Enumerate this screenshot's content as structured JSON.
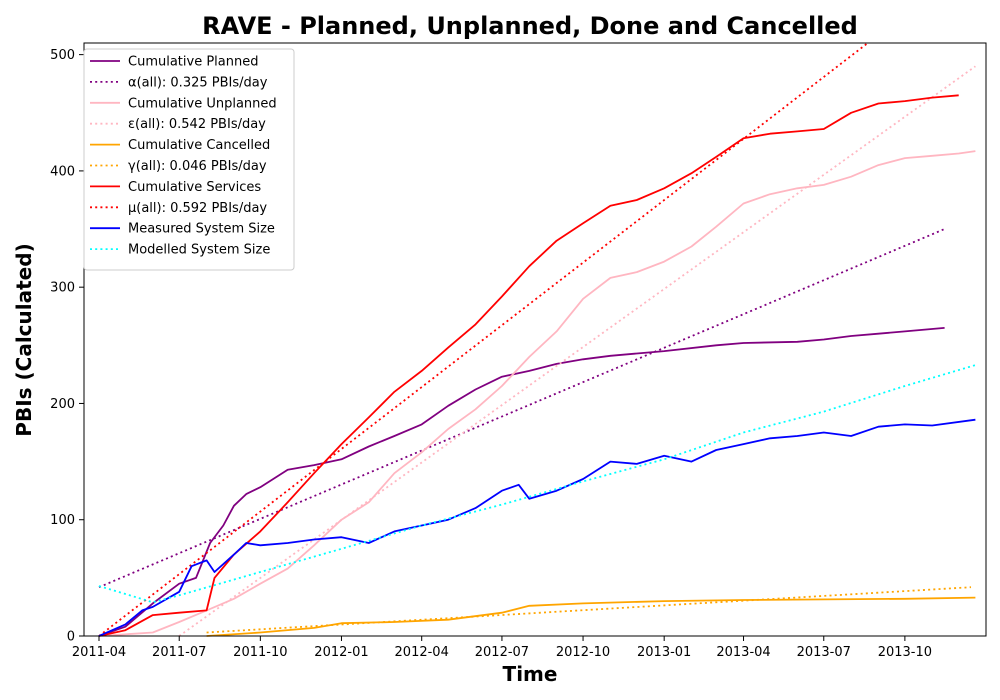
{
  "chart_data": {
    "type": "line",
    "title": "RAVE - Planned, Unplanned, Done  and Cancelled",
    "xlabel": "Time",
    "ylabel": "PBIs (Calculated)",
    "xlim": [
      "2011-03-15",
      "2014-01-01"
    ],
    "ylim": [
      0,
      510
    ],
    "xticks": [
      {
        "date": "2011-04-01",
        "label": "2011-04"
      },
      {
        "date": "2011-07-01",
        "label": "2011-07"
      },
      {
        "date": "2011-10-01",
        "label": "2011-10"
      },
      {
        "date": "2012-01-01",
        "label": "2012-01"
      },
      {
        "date": "2012-04-01",
        "label": "2012-04"
      },
      {
        "date": "2012-07-01",
        "label": "2012-07"
      },
      {
        "date": "2012-10-01",
        "label": "2012-10"
      },
      {
        "date": "2013-01-01",
        "label": "2013-01"
      },
      {
        "date": "2013-04-01",
        "label": "2013-04"
      },
      {
        "date": "2013-07-01",
        "label": "2013-07"
      },
      {
        "date": "2013-10-01",
        "label": "2013-10"
      }
    ],
    "yticks": [
      0,
      100,
      200,
      300,
      400,
      500
    ],
    "grid": false,
    "legend_position": "top-left",
    "series": [
      {
        "name": "Cumulative Planned",
        "color": "#800080",
        "style": "solid",
        "points": [
          [
            "2011-04-01",
            0
          ],
          [
            "2011-05-01",
            8
          ],
          [
            "2011-06-01",
            28
          ],
          [
            "2011-07-01",
            45
          ],
          [
            "2011-07-20",
            50
          ],
          [
            "2011-08-05",
            80
          ],
          [
            "2011-08-20",
            95
          ],
          [
            "2011-09-01",
            112
          ],
          [
            "2011-09-15",
            122
          ],
          [
            "2011-10-01",
            128
          ],
          [
            "2011-11-01",
            143
          ],
          [
            "2011-12-01",
            147
          ],
          [
            "2012-01-01",
            152
          ],
          [
            "2012-02-01",
            163
          ],
          [
            "2012-03-01",
            172
          ],
          [
            "2012-04-01",
            182
          ],
          [
            "2012-05-01",
            198
          ],
          [
            "2012-06-01",
            212
          ],
          [
            "2012-07-01",
            223
          ],
          [
            "2012-08-01",
            228
          ],
          [
            "2012-09-01",
            234
          ],
          [
            "2012-10-01",
            238
          ],
          [
            "2012-11-01",
            241
          ],
          [
            "2012-12-01",
            243
          ],
          [
            "2013-01-01",
            245
          ],
          [
            "2013-03-01",
            250
          ],
          [
            "2013-04-01",
            252
          ],
          [
            "2013-06-01",
            253
          ],
          [
            "2013-07-01",
            255
          ],
          [
            "2013-08-01",
            258
          ],
          [
            "2013-09-01",
            260
          ],
          [
            "2013-10-01",
            262
          ],
          [
            "2013-11-15",
            265
          ]
        ]
      },
      {
        "name": "α(all): 0.325 PBIs/day",
        "color": "#800080",
        "style": "dotted",
        "points": [
          [
            "2011-04-01",
            42
          ],
          [
            "2013-11-15",
            350
          ]
        ]
      },
      {
        "name": "Cumulative Unplanned",
        "color": "#FFB6C1",
        "style": "solid",
        "points": [
          [
            "2011-04-01",
            0
          ],
          [
            "2011-06-01",
            3
          ],
          [
            "2011-07-01",
            12
          ],
          [
            "2011-08-01",
            22
          ],
          [
            "2011-09-01",
            32
          ],
          [
            "2011-10-01",
            45
          ],
          [
            "2011-11-01",
            58
          ],
          [
            "2011-12-01",
            78
          ],
          [
            "2012-01-01",
            100
          ],
          [
            "2012-02-01",
            115
          ],
          [
            "2012-03-01",
            140
          ],
          [
            "2012-04-01",
            158
          ],
          [
            "2012-05-01",
            178
          ],
          [
            "2012-06-01",
            195
          ],
          [
            "2012-07-01",
            215
          ],
          [
            "2012-08-01",
            240
          ],
          [
            "2012-09-01",
            262
          ],
          [
            "2012-10-01",
            290
          ],
          [
            "2012-11-01",
            308
          ],
          [
            "2012-12-01",
            313
          ],
          [
            "2013-01-01",
            322
          ],
          [
            "2013-02-01",
            335
          ],
          [
            "2013-03-01",
            352
          ],
          [
            "2013-04-01",
            372
          ],
          [
            "2013-05-01",
            380
          ],
          [
            "2013-06-01",
            385
          ],
          [
            "2013-07-01",
            388
          ],
          [
            "2013-08-01",
            395
          ],
          [
            "2013-09-01",
            405
          ],
          [
            "2013-10-01",
            411
          ],
          [
            "2013-11-01",
            413
          ],
          [
            "2013-12-01",
            415
          ],
          [
            "2013-12-20",
            417
          ]
        ]
      },
      {
        "name": "ε(all): 0.542 PBIs/day",
        "color": "#FFB6C1",
        "style": "dotted",
        "points": [
          [
            "2011-07-01",
            0
          ],
          [
            "2013-12-20",
            490
          ]
        ]
      },
      {
        "name": "Cumulative Cancelled",
        "color": "#FFA500",
        "style": "solid",
        "points": [
          [
            "2011-08-01",
            0
          ],
          [
            "2011-10-01",
            3
          ],
          [
            "2011-12-01",
            7
          ],
          [
            "2012-01-01",
            11
          ],
          [
            "2012-03-01",
            12
          ],
          [
            "2012-05-01",
            14
          ],
          [
            "2012-07-01",
            20
          ],
          [
            "2012-08-01",
            26
          ],
          [
            "2012-10-01",
            28
          ],
          [
            "2013-01-01",
            30
          ],
          [
            "2013-04-01",
            31
          ],
          [
            "2013-10-01",
            32
          ],
          [
            "2013-12-20",
            33
          ]
        ]
      },
      {
        "name": "γ(all): 0.046 PBIs/day",
        "color": "#FFA500",
        "style": "dotted",
        "points": [
          [
            "2011-08-01",
            3
          ],
          [
            "2013-12-15",
            42
          ]
        ]
      },
      {
        "name": "Cumulative Services",
        "color": "#FF0000",
        "style": "solid",
        "points": [
          [
            "2011-04-01",
            0
          ],
          [
            "2011-05-01",
            5
          ],
          [
            "2011-06-01",
            18
          ],
          [
            "2011-07-01",
            20
          ],
          [
            "2011-08-01",
            22
          ],
          [
            "2011-08-10",
            50
          ],
          [
            "2011-09-01",
            70
          ],
          [
            "2011-10-01",
            90
          ],
          [
            "2011-11-01",
            115
          ],
          [
            "2011-12-01",
            140
          ],
          [
            "2012-01-01",
            165
          ],
          [
            "2012-02-01",
            188
          ],
          [
            "2012-03-01",
            210
          ],
          [
            "2012-04-01",
            228
          ],
          [
            "2012-05-01",
            248
          ],
          [
            "2012-06-01",
            268
          ],
          [
            "2012-07-01",
            292
          ],
          [
            "2012-08-01",
            318
          ],
          [
            "2012-09-01",
            340
          ],
          [
            "2012-10-01",
            355
          ],
          [
            "2012-11-01",
            370
          ],
          [
            "2012-12-01",
            375
          ],
          [
            "2013-01-01",
            385
          ],
          [
            "2013-02-01",
            398
          ],
          [
            "2013-03-01",
            412
          ],
          [
            "2013-04-01",
            428
          ],
          [
            "2013-05-01",
            432
          ],
          [
            "2013-06-01",
            434
          ],
          [
            "2013-07-01",
            436
          ],
          [
            "2013-08-01",
            450
          ],
          [
            "2013-09-01",
            458
          ],
          [
            "2013-10-01",
            460
          ],
          [
            "2013-11-01",
            463
          ],
          [
            "2013-12-01",
            465
          ]
        ]
      },
      {
        "name": "μ(all): 0.592 PBIs/day",
        "color": "#FF0000",
        "style": "dotted",
        "points": [
          [
            "2011-04-01",
            0
          ],
          [
            "2013-08-20",
            510
          ]
        ]
      },
      {
        "name": "Measured System Size",
        "color": "#0000FF",
        "style": "solid",
        "points": [
          [
            "2011-04-01",
            0
          ],
          [
            "2011-05-01",
            10
          ],
          [
            "2011-05-20",
            22
          ],
          [
            "2011-06-01",
            25
          ],
          [
            "2011-07-01",
            38
          ],
          [
            "2011-07-15",
            60
          ],
          [
            "2011-08-01",
            65
          ],
          [
            "2011-08-10",
            55
          ],
          [
            "2011-09-01",
            70
          ],
          [
            "2011-09-15",
            80
          ],
          [
            "2011-10-01",
            78
          ],
          [
            "2011-11-01",
            80
          ],
          [
            "2011-12-01",
            83
          ],
          [
            "2012-01-01",
            85
          ],
          [
            "2012-02-01",
            80
          ],
          [
            "2012-03-01",
            90
          ],
          [
            "2012-04-01",
            95
          ],
          [
            "2012-05-01",
            100
          ],
          [
            "2012-06-01",
            110
          ],
          [
            "2012-07-01",
            125
          ],
          [
            "2012-07-20",
            130
          ],
          [
            "2012-08-01",
            118
          ],
          [
            "2012-09-01",
            125
          ],
          [
            "2012-10-01",
            135
          ],
          [
            "2012-11-01",
            150
          ],
          [
            "2012-12-01",
            148
          ],
          [
            "2013-01-01",
            155
          ],
          [
            "2013-02-01",
            150
          ],
          [
            "2013-03-01",
            160
          ],
          [
            "2013-04-01",
            165
          ],
          [
            "2013-05-01",
            170
          ],
          [
            "2013-06-01",
            172
          ],
          [
            "2013-07-01",
            175
          ],
          [
            "2013-08-01",
            172
          ],
          [
            "2013-09-01",
            180
          ],
          [
            "2013-10-01",
            182
          ],
          [
            "2013-11-01",
            181
          ],
          [
            "2013-12-20",
            186
          ]
        ]
      },
      {
        "name": "Modelled System Size",
        "color": "#00FFFF",
        "style": "dotted",
        "points": [
          [
            "2011-04-01",
            43
          ],
          [
            "2011-06-01",
            29
          ],
          [
            "2011-07-01",
            35
          ],
          [
            "2011-10-01",
            55
          ],
          [
            "2012-01-01",
            75
          ],
          [
            "2012-04-01",
            95
          ],
          [
            "2012-07-01",
            113
          ],
          [
            "2012-10-01",
            133
          ],
          [
            "2013-01-01",
            152
          ],
          [
            "2013-04-01",
            175
          ],
          [
            "2013-07-01",
            193
          ],
          [
            "2013-10-01",
            215
          ],
          [
            "2013-12-20",
            233
          ]
        ]
      }
    ]
  }
}
